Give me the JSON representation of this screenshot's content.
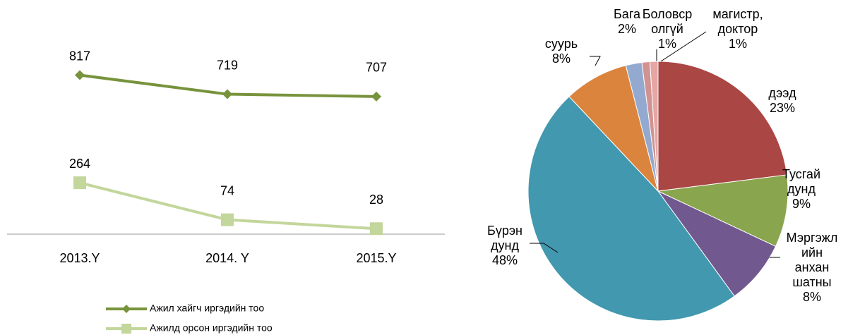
{
  "chart_data": [
    {
      "type": "line",
      "categories": [
        "2013.Y",
        "2014. Y",
        "2015.Y"
      ],
      "ylim": [
        0,
        1000
      ],
      "series": [
        {
          "name": "Ажил хайгч иргэдийн тоо",
          "color": "#77933c",
          "marker": "diamond",
          "values": [
            817,
            719,
            707
          ]
        },
        {
          "name": "Ажилд орсон иргэдийн тоо",
          "color": "#c3d69b",
          "marker": "square",
          "values": [
            264,
            74,
            28
          ]
        }
      ]
    },
    {
      "type": "pie",
      "categories": [
        "дээд",
        "Тусгай\nдунд",
        "Мэргэжл\nийн\nанхан\nшатны",
        "Бүрэн\nдунд",
        "суурь",
        "Бага",
        "Боловср\nолгүй",
        "магистр,\nдоктор"
      ],
      "values": [
        23,
        9,
        8,
        48,
        8,
        2,
        1,
        1
      ],
      "value_labels": [
        "23%",
        "9%",
        "8%",
        "48%",
        "8%",
        "2%",
        "1%",
        "1%"
      ],
      "colors": [
        "#aa4643",
        "#89a54e",
        "#71588f",
        "#4198af",
        "#db843d",
        "#93a9cf",
        "#d19392",
        "#e7a5a4"
      ]
    }
  ]
}
